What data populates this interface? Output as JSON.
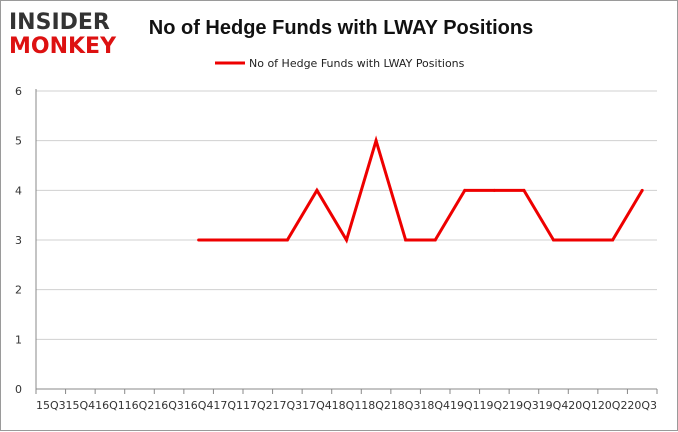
{
  "logo": {
    "line1": "INSIDER",
    "line2": "MONKEY"
  },
  "colors": {
    "series": "#ee0000",
    "logo_dark": "#333333",
    "logo_red": "#dd1111",
    "grid": "#d0d0d0",
    "axis": "#888888"
  },
  "chart_data": {
    "type": "line",
    "title": "No of Hedge Funds with LWAY Positions",
    "xlabel": "",
    "ylabel": "",
    "legend_position": "top-center",
    "grid": true,
    "ylim": [
      0,
      6
    ],
    "yticks": [
      0,
      1,
      2,
      3,
      4,
      5,
      6
    ],
    "categories": [
      "15Q3",
      "15Q4",
      "16Q1",
      "16Q2",
      "16Q3",
      "16Q4",
      "17Q1",
      "17Q2",
      "17Q3",
      "17Q4",
      "18Q1",
      "18Q2",
      "18Q3",
      "18Q4",
      "19Q1",
      "19Q2",
      "19Q3",
      "19Q4",
      "20Q1",
      "20Q2",
      "20Q3"
    ],
    "series": [
      {
        "name": "No of Hedge Funds with LWAY Positions",
        "values": [
          null,
          null,
          null,
          null,
          null,
          3,
          3,
          3,
          3,
          4,
          3,
          5,
          3,
          3,
          4,
          4,
          4,
          3,
          3,
          3,
          4
        ]
      }
    ]
  }
}
